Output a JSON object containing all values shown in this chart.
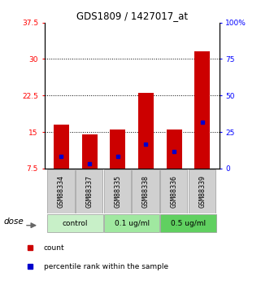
{
  "title": "GDS1809 / 1427017_at",
  "samples": [
    "GSM88334",
    "GSM88337",
    "GSM88335",
    "GSM88338",
    "GSM88336",
    "GSM88339"
  ],
  "group_labels": [
    "control",
    "0.1 ug/ml",
    "0.5 ug/ml"
  ],
  "bar_bottom": 7.5,
  "red_tops": [
    16.5,
    14.5,
    15.5,
    23.0,
    15.5,
    31.5
  ],
  "blue_values": [
    10.0,
    8.5,
    10.0,
    12.5,
    11.0,
    17.0
  ],
  "ylim_left": [
    7.5,
    37.5
  ],
  "ylim_right": [
    0,
    100
  ],
  "yticks_left": [
    7.5,
    15.0,
    22.5,
    30.0,
    37.5
  ],
  "yticks_right": [
    0,
    25,
    50,
    75,
    100
  ],
  "ytick_labels_left": [
    "7.5",
    "15",
    "22.5",
    "30",
    "37.5"
  ],
  "ytick_labels_right": [
    "0",
    "25",
    "50",
    "75",
    "100%"
  ],
  "bar_color": "#cc0000",
  "blue_color": "#0000cc",
  "dose_label": "dose",
  "legend_count": "count",
  "legend_pct": "percentile rank within the sample",
  "group_facecolors": [
    "#c8f0c8",
    "#a0e8a0",
    "#60d060"
  ],
  "sample_box_color": "#d0d0d0",
  "bar_width": 0.55,
  "grid_yticks": [
    15.0,
    22.5,
    30.0
  ]
}
